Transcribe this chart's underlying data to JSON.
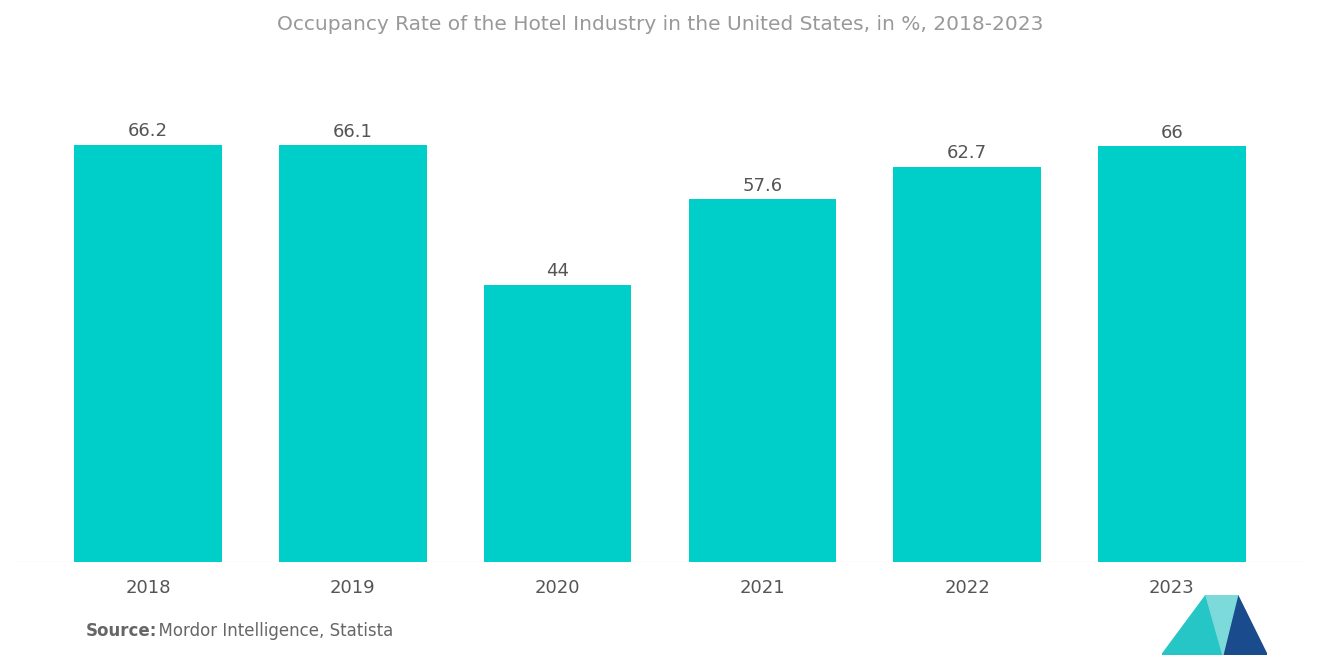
{
  "title": "Occupancy Rate of the Hotel Industry in the United States, in %, 2018-2023",
  "categories": [
    "2018",
    "2019",
    "2020",
    "2021",
    "2022",
    "2023"
  ],
  "values": [
    66.2,
    66.1,
    44.0,
    57.6,
    62.7,
    66.0
  ],
  "bar_color": "#00CEC9",
  "background_color": "#ffffff",
  "title_color": "#999999",
  "label_color": "#555555",
  "tick_color": "#555555",
  "source_bold": "Source:",
  "source_text": "  Mordor Intelligence, Statista",
  "title_fontsize": 14.5,
  "label_fontsize": 13,
  "tick_fontsize": 13,
  "source_fontsize": 12,
  "ylim": [
    0,
    80
  ],
  "bar_width": 0.72
}
